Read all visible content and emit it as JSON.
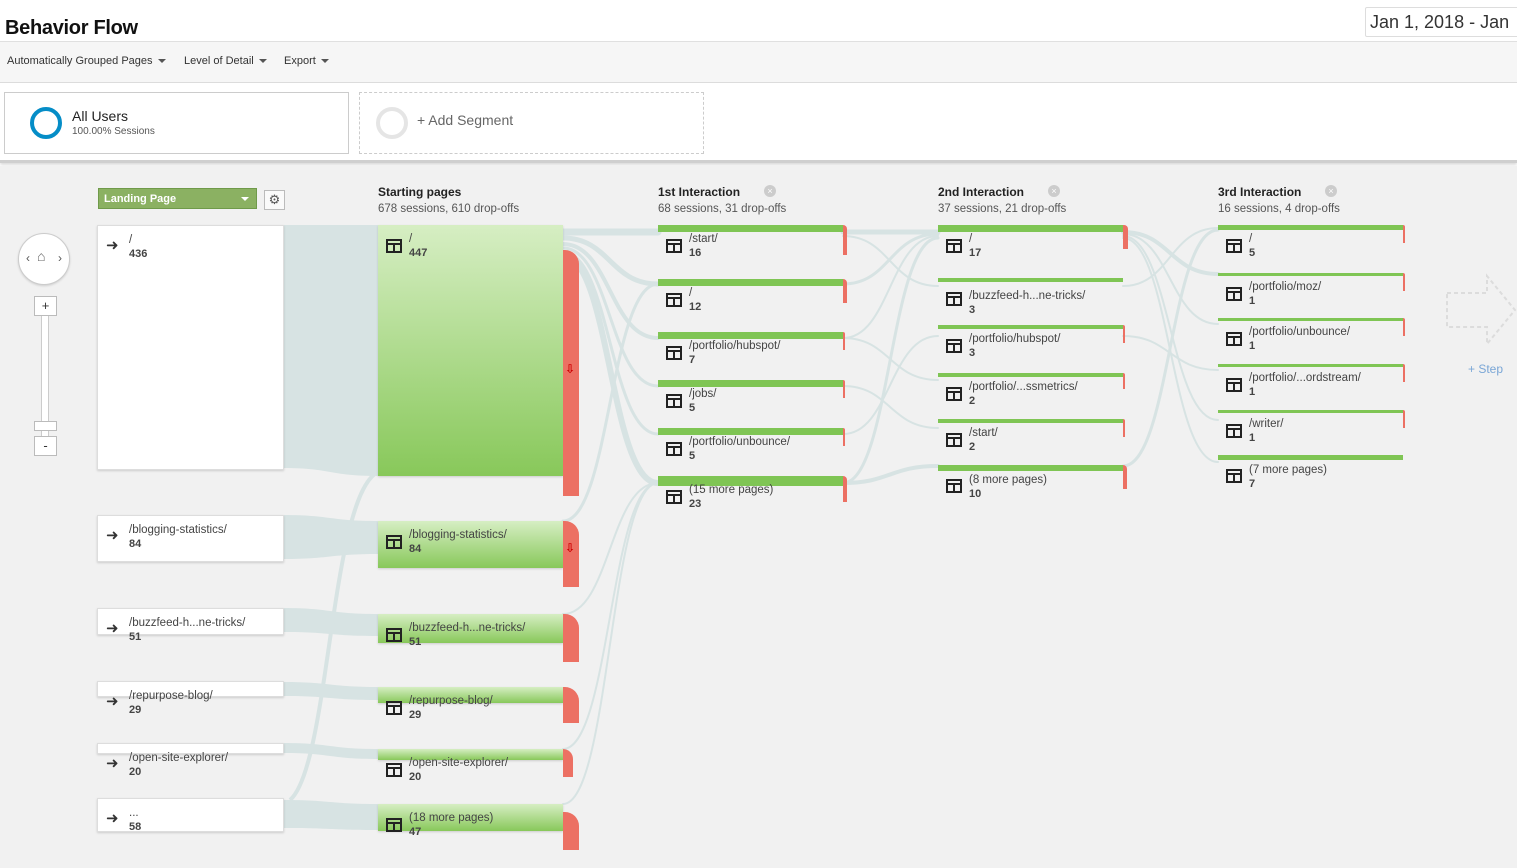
{
  "header": {
    "title": "Behavior Flow",
    "date_range": "Jan 1, 2018 - Jan"
  },
  "toolbar": {
    "grouping": "Automatically Grouped Pages",
    "detail": "Level of Detail",
    "export": "Export"
  },
  "segments": [
    {
      "name": "All Users",
      "sub": "100.00% Sessions"
    },
    {
      "name": "+ Add Segment"
    }
  ],
  "controls": {
    "dimension": "Landing Page",
    "zoom_in": "+",
    "zoom_out": "-",
    "add_step": "+ Step"
  },
  "colors": {
    "green": "#7fc554",
    "dropoff": "#ec7063",
    "ring": "#058dc7",
    "flow": "#d7e3e3"
  },
  "columns": [
    {
      "title": "Starting pages",
      "stats": "678 sessions, 610 drop-offs"
    },
    {
      "title": "1st Interaction",
      "stats": "68 sessions, 31 drop-offs"
    },
    {
      "title": "2nd Interaction",
      "stats": "37 sessions, 21 drop-offs"
    },
    {
      "title": "3rd Interaction",
      "stats": "16 sessions, 4 drop-offs"
    }
  ],
  "landing": [
    {
      "label": "/",
      "count": "436"
    },
    {
      "label": "/blogging-statistics/",
      "count": "84"
    },
    {
      "label": "/buzzfeed-h...ne-tricks/",
      "count": "51"
    },
    {
      "label": "/repurpose-blog/",
      "count": "29"
    },
    {
      "label": "/open-site-explorer/",
      "count": "20"
    },
    {
      "label": "...",
      "count": "58"
    }
  ],
  "starting": [
    {
      "label": "/",
      "count": "447"
    },
    {
      "label": "/blogging-statistics/",
      "count": "84"
    },
    {
      "label": "/buzzfeed-h...ne-tricks/",
      "count": "51"
    },
    {
      "label": "/repurpose-blog/",
      "count": "29"
    },
    {
      "label": "/open-site-explorer/",
      "count": "20"
    },
    {
      "label": "(18 more pages)",
      "count": "47"
    }
  ],
  "interaction1": [
    {
      "label": "/start/",
      "count": "16"
    },
    {
      "label": "/",
      "count": "12"
    },
    {
      "label": "/portfolio/hubspot/",
      "count": "7"
    },
    {
      "label": "/jobs/",
      "count": "5"
    },
    {
      "label": "/portfolio/unbounce/",
      "count": "5"
    },
    {
      "label": "(15 more pages)",
      "count": "23"
    }
  ],
  "interaction2": [
    {
      "label": "/",
      "count": "17"
    },
    {
      "label": "/buzzfeed-h...ne-tricks/",
      "count": "3"
    },
    {
      "label": "/portfolio/hubspot/",
      "count": "3"
    },
    {
      "label": "/portfolio/...ssmetrics/",
      "count": "2"
    },
    {
      "label": "/start/",
      "count": "2"
    },
    {
      "label": "(8 more pages)",
      "count": "10"
    }
  ],
  "interaction3": [
    {
      "label": "/",
      "count": "5"
    },
    {
      "label": "/portfolio/moz/",
      "count": "1"
    },
    {
      "label": "/portfolio/unbounce/",
      "count": "1"
    },
    {
      "label": "/portfolio/...ordstream/",
      "count": "1"
    },
    {
      "label": "/writer/",
      "count": "1"
    },
    {
      "label": "(7 more pages)",
      "count": "7"
    }
  ]
}
